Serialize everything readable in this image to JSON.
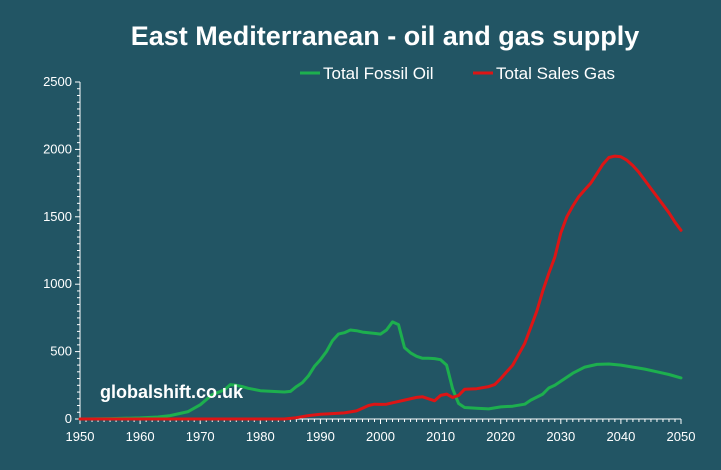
{
  "chart_data": {
    "type": "line",
    "title": "East Mediterranean - oil and gas supply",
    "xlabel": "",
    "ylabel": "",
    "xlim": [
      1950,
      2050
    ],
    "ylim": [
      0,
      2500
    ],
    "x_ticks": [
      "1950",
      "1960",
      "1970",
      "1980",
      "1990",
      "2000",
      "2010",
      "2020",
      "2030",
      "2040",
      "2050"
    ],
    "y_ticks": [
      "0",
      "500",
      "1000",
      "1500",
      "2000",
      "2500"
    ],
    "grid": false,
    "legend_position": "top-right",
    "annotation": "globalshift.co.uk",
    "colors": {
      "background": "#225564",
      "axis": "#ffffff"
    },
    "series": [
      {
        "name": "Total Fossil Oil",
        "color": "#1daf4e",
        "points": [
          [
            1950,
            0
          ],
          [
            1955,
            3
          ],
          [
            1960,
            8
          ],
          [
            1963,
            15
          ],
          [
            1965,
            25
          ],
          [
            1968,
            55
          ],
          [
            1970,
            105
          ],
          [
            1972,
            180
          ],
          [
            1974,
            215
          ],
          [
            1975,
            255
          ],
          [
            1976,
            250
          ],
          [
            1977,
            240
          ],
          [
            1978,
            228
          ],
          [
            1980,
            210
          ],
          [
            1982,
            205
          ],
          [
            1984,
            200
          ],
          [
            1985,
            205
          ],
          [
            1986,
            240
          ],
          [
            1987,
            270
          ],
          [
            1988,
            320
          ],
          [
            1989,
            390
          ],
          [
            1990,
            440
          ],
          [
            1991,
            500
          ],
          [
            1992,
            580
          ],
          [
            1993,
            630
          ],
          [
            1994,
            640
          ],
          [
            1995,
            660
          ],
          [
            1996,
            655
          ],
          [
            1997,
            645
          ],
          [
            1998,
            640
          ],
          [
            1999,
            635
          ],
          [
            2000,
            630
          ],
          [
            2001,
            660
          ],
          [
            2002,
            720
          ],
          [
            2003,
            700
          ],
          [
            2004,
            530
          ],
          [
            2005,
            490
          ],
          [
            2006,
            465
          ],
          [
            2007,
            450
          ],
          [
            2008,
            450
          ],
          [
            2009,
            448
          ],
          [
            2010,
            440
          ],
          [
            2011,
            400
          ],
          [
            2012,
            225
          ],
          [
            2013,
            115
          ],
          [
            2014,
            85
          ],
          [
            2016,
            80
          ],
          [
            2018,
            75
          ],
          [
            2020,
            90
          ],
          [
            2022,
            95
          ],
          [
            2024,
            110
          ],
          [
            2025,
            140
          ],
          [
            2027,
            185
          ],
          [
            2028,
            230
          ],
          [
            2029,
            250
          ],
          [
            2030,
            280
          ],
          [
            2032,
            340
          ],
          [
            2034,
            385
          ],
          [
            2036,
            405
          ],
          [
            2038,
            408
          ],
          [
            2040,
            400
          ],
          [
            2042,
            385
          ],
          [
            2044,
            370
          ],
          [
            2046,
            350
          ],
          [
            2048,
            330
          ],
          [
            2050,
            305
          ]
        ]
      },
      {
        "name": "Total Sales Gas",
        "color": "#dd1515",
        "points": [
          [
            1950,
            0
          ],
          [
            1960,
            0
          ],
          [
            1970,
            0
          ],
          [
            1980,
            0
          ],
          [
            1984,
            0
          ],
          [
            1986,
            10
          ],
          [
            1988,
            25
          ],
          [
            1990,
            35
          ],
          [
            1992,
            40
          ],
          [
            1994,
            45
          ],
          [
            1996,
            60
          ],
          [
            1997,
            80
          ],
          [
            1998,
            100
          ],
          [
            1999,
            110
          ],
          [
            2000,
            108
          ],
          [
            2001,
            110
          ],
          [
            2002,
            120
          ],
          [
            2004,
            140
          ],
          [
            2006,
            160
          ],
          [
            2007,
            165
          ],
          [
            2008,
            150
          ],
          [
            2009,
            135
          ],
          [
            2010,
            175
          ],
          [
            2011,
            185
          ],
          [
            2012,
            160
          ],
          [
            2013,
            175
          ],
          [
            2014,
            220
          ],
          [
            2016,
            225
          ],
          [
            2018,
            240
          ],
          [
            2019,
            255
          ],
          [
            2020,
            300
          ],
          [
            2021,
            350
          ],
          [
            2022,
            400
          ],
          [
            2023,
            480
          ],
          [
            2024,
            560
          ],
          [
            2025,
            680
          ],
          [
            2026,
            800
          ],
          [
            2027,
            950
          ],
          [
            2028,
            1080
          ],
          [
            2029,
            1200
          ],
          [
            2030,
            1380
          ],
          [
            2031,
            1500
          ],
          [
            2032,
            1580
          ],
          [
            2033,
            1650
          ],
          [
            2034,
            1700
          ],
          [
            2035,
            1750
          ],
          [
            2036,
            1820
          ],
          [
            2037,
            1890
          ],
          [
            2038,
            1940
          ],
          [
            2039,
            1950
          ],
          [
            2040,
            1945
          ],
          [
            2041,
            1920
          ],
          [
            2042,
            1880
          ],
          [
            2043,
            1830
          ],
          [
            2044,
            1770
          ],
          [
            2045,
            1710
          ],
          [
            2046,
            1650
          ],
          [
            2047,
            1590
          ],
          [
            2048,
            1530
          ],
          [
            2049,
            1460
          ],
          [
            2050,
            1400
          ]
        ]
      }
    ]
  }
}
